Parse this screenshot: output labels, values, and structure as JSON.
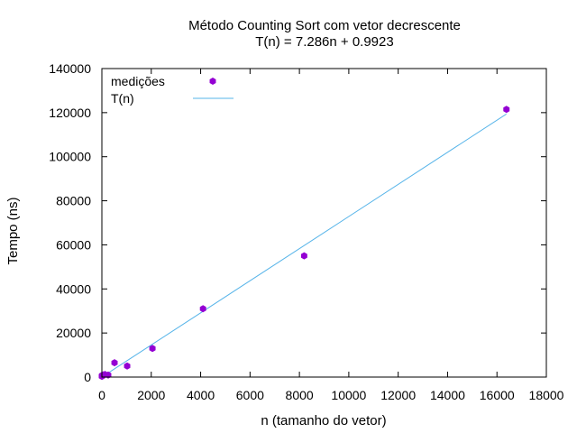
{
  "chart_data": {
    "type": "scatter",
    "title": "Método Counting Sort com vetor decrescente",
    "subtitle": "T(n) = 7.286n + 0.9923",
    "xlabel": "n (tamanho do vetor)",
    "ylabel": "Tempo (ns)",
    "xlim": [
      0,
      18000
    ],
    "ylim": [
      0,
      140000
    ],
    "xticks": [
      0,
      2000,
      4000,
      6000,
      8000,
      10000,
      12000,
      14000,
      16000,
      18000
    ],
    "yticks": [
      0,
      20000,
      40000,
      60000,
      80000,
      100000,
      120000,
      140000
    ],
    "grid": false,
    "legend_position": "top-left",
    "series": [
      {
        "name": "medições",
        "kind": "points",
        "color": "#9400d3",
        "points": [
          {
            "x": 1,
            "y": 500
          },
          {
            "x": 2,
            "y": 300
          },
          {
            "x": 4,
            "y": 400
          },
          {
            "x": 8,
            "y": 600
          },
          {
            "x": 16,
            "y": 800
          },
          {
            "x": 32,
            "y": 700
          },
          {
            "x": 64,
            "y": 1000
          },
          {
            "x": 128,
            "y": 1200
          },
          {
            "x": 256,
            "y": 900
          },
          {
            "x": 512,
            "y": 6500
          },
          {
            "x": 1024,
            "y": 5000
          },
          {
            "x": 2048,
            "y": 13000
          },
          {
            "x": 4096,
            "y": 31000
          },
          {
            "x": 8192,
            "y": 55000
          },
          {
            "x": 16384,
            "y": 121500
          }
        ]
      },
      {
        "name": "T(n)",
        "kind": "line",
        "color": "#56b4e9",
        "slope": 7.286,
        "intercept": 0.9923,
        "x_range": [
          0,
          16384
        ]
      }
    ]
  }
}
